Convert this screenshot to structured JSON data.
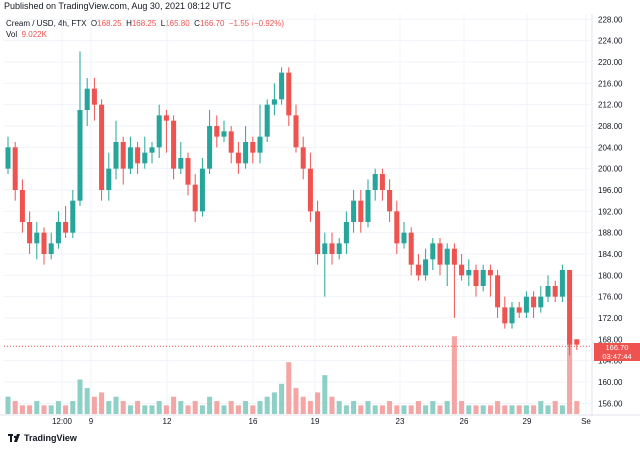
{
  "header": {
    "published": "Published on TradingView.com, Aug 30, 2021 08:12 UTC"
  },
  "symbol": {
    "name": "Cream / USD, 4h, FTX",
    "open_label": "O",
    "open": "168.25",
    "high_label": "H",
    "high": "168.25",
    "low_label": "L",
    "low": "165.80",
    "close_label": "C",
    "close": "166.70",
    "change": "−1.55 (−0.92%)"
  },
  "volume": {
    "label": "Vol",
    "value": "9.022K"
  },
  "last_price": {
    "value": "166.70",
    "countdown": "03:47:44"
  },
  "footer": {
    "brand": "TradingView"
  },
  "colors": {
    "up": "#26a69a",
    "down": "#ef5350",
    "up_volume": "#8fd0c6",
    "down_volume": "#f4a6a4",
    "grid": "#f0f3fa",
    "axis_text": "#131722"
  },
  "chart_data": {
    "type": "candlestick",
    "y_axis_ticks": [
      "156.00",
      "160.00",
      "164.00",
      "168.00",
      "172.00",
      "176.00",
      "180.00",
      "184.00",
      "188.00",
      "192.00",
      "196.00",
      "200.00",
      "204.00",
      "208.00",
      "212.00",
      "216.00",
      "220.00",
      "224.00",
      "228.00"
    ],
    "ylim": [
      154,
      229
    ],
    "x_axis_ticks": [
      "12:00",
      "9",
      "12",
      "16",
      "19",
      "23",
      "26",
      "29",
      "Se"
    ],
    "candles": [
      [
        200,
        204,
        206,
        199
      ],
      [
        204,
        196,
        205,
        194
      ],
      [
        196,
        190,
        198,
        188
      ],
      [
        190,
        186,
        192,
        184
      ],
      [
        186,
        188,
        190,
        183
      ],
      [
        188,
        184,
        189,
        182
      ],
      [
        184,
        186,
        188,
        183
      ],
      [
        186,
        190,
        192,
        185
      ],
      [
        190,
        188,
        193,
        187
      ],
      [
        188,
        194,
        196,
        187
      ],
      [
        194,
        211,
        222,
        193
      ],
      [
        211,
        215,
        217,
        208
      ],
      [
        215,
        212,
        217,
        209
      ],
      [
        212,
        196,
        213,
        194
      ],
      [
        196,
        200,
        203,
        194
      ],
      [
        200,
        205,
        209,
        198
      ],
      [
        205,
        200,
        206,
        197
      ],
      [
        200,
        204,
        206,
        199
      ],
      [
        204,
        201,
        205,
        199
      ],
      [
        201,
        203,
        206,
        200
      ],
      [
        203,
        204,
        205,
        201
      ],
      [
        204,
        210,
        212,
        202
      ],
      [
        210,
        209,
        211,
        203
      ],
      [
        209,
        200,
        210,
        198
      ],
      [
        200,
        202,
        205,
        199
      ],
      [
        202,
        197,
        203,
        195
      ],
      [
        197,
        192,
        199,
        190
      ],
      [
        192,
        200,
        202,
        191
      ],
      [
        200,
        208,
        211,
        199
      ],
      [
        208,
        206,
        210,
        204
      ],
      [
        206,
        207,
        209,
        205
      ],
      [
        207,
        203,
        208,
        201
      ],
      [
        203,
        201,
        205,
        199
      ],
      [
        201,
        205,
        208,
        200
      ],
      [
        205,
        203,
        206,
        201
      ],
      [
        203,
        206,
        212,
        201
      ],
      [
        206,
        212,
        213,
        205
      ],
      [
        212,
        213,
        216,
        210
      ],
      [
        213,
        218,
        219,
        212
      ],
      [
        218,
        210,
        219,
        208
      ],
      [
        210,
        204,
        212,
        203
      ],
      [
        204,
        200,
        206,
        198
      ],
      [
        200,
        192,
        203,
        190
      ],
      [
        192,
        184,
        194,
        182
      ],
      [
        184,
        186,
        188,
        176
      ],
      [
        186,
        184,
        188,
        182
      ],
      [
        184,
        186,
        187,
        183
      ],
      [
        186,
        190,
        192,
        184
      ],
      [
        190,
        194,
        196,
        188
      ],
      [
        194,
        190,
        196,
        188
      ],
      [
        190,
        196,
        198,
        189
      ],
      [
        196,
        199,
        200,
        194
      ],
      [
        199,
        196,
        200,
        194
      ],
      [
        196,
        192,
        198,
        190
      ],
      [
        192,
        186,
        194,
        184
      ],
      [
        186,
        188,
        190,
        185
      ],
      [
        188,
        182,
        189,
        180
      ],
      [
        182,
        180,
        184,
        179
      ],
      [
        180,
        183,
        185,
        179
      ],
      [
        183,
        186,
        187,
        181
      ],
      [
        186,
        182,
        187,
        180
      ],
      [
        182,
        185,
        186,
        178
      ],
      [
        185,
        182,
        186,
        172
      ],
      [
        182,
        180,
        184,
        179
      ],
      [
        180,
        181,
        183,
        178
      ],
      [
        181,
        178,
        182,
        176
      ],
      [
        178,
        181,
        182,
        177
      ],
      [
        181,
        180,
        182,
        176
      ],
      [
        180,
        174,
        181,
        172
      ],
      [
        174,
        171,
        176,
        170
      ],
      [
        171,
        174,
        175,
        170
      ],
      [
        174,
        173,
        175,
        172
      ],
      [
        173,
        176,
        177,
        172
      ],
      [
        176,
        174,
        177,
        172
      ],
      [
        174,
        176,
        178,
        173
      ],
      [
        176,
        178,
        180,
        175
      ],
      [
        178,
        176,
        179,
        175
      ],
      [
        176,
        181,
        182,
        175
      ],
      [
        181,
        167,
        181,
        165
      ],
      [
        168,
        167,
        168,
        166
      ]
    ],
    "volumes": [
      4,
      3,
      2,
      2,
      3,
      2,
      2,
      3,
      2,
      3,
      8,
      6,
      4,
      5,
      3,
      4,
      3,
      2,
      3,
      2,
      2,
      3,
      2,
      4,
      3,
      2,
      3,
      2,
      4,
      3,
      2,
      3,
      2,
      3,
      2,
      3,
      4,
      5,
      7,
      12,
      6,
      4,
      3,
      5,
      9,
      4,
      3,
      2,
      3,
      2,
      3,
      2,
      2,
      3,
      2,
      2,
      2,
      3,
      2,
      3,
      2,
      3,
      18,
      3,
      2,
      2,
      2,
      2,
      3,
      2,
      2,
      2,
      2,
      2,
      3,
      2,
      3,
      2,
      22,
      3
    ]
  }
}
